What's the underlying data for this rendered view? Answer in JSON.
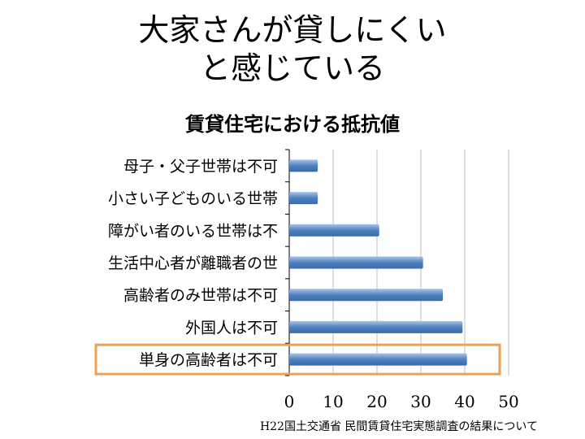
{
  "slide_title": [
    "大家さんが貸しにくい",
    "と感じている"
  ],
  "source": "H22国土交通省 民間賃貸住宅実態調査の結果について",
  "colors": {
    "bar": "#4f81bd",
    "highlight": "#f0a050",
    "grid": "#bfbfbf"
  },
  "chart_data": {
    "type": "bar",
    "orientation": "horizontal",
    "title": "賃貸住宅における抵抗値",
    "categories": [
      "母子・父子世帯は不可",
      "小さい子どものいる世帯",
      "障がい者のいる世帯は不",
      "生活中心者が離職者の世",
      "高齢者のみ世帯は不可",
      "外国人は不可",
      "単身の高齢者は不可"
    ],
    "values": [
      6.5,
      6.5,
      20.5,
      30.5,
      35,
      39.5,
      40.5
    ],
    "xlim": [
      0,
      50
    ],
    "xticks": [
      0,
      10,
      20,
      30,
      40,
      50
    ],
    "grid": true,
    "highlighted_category": "単身の高齢者は不可"
  }
}
